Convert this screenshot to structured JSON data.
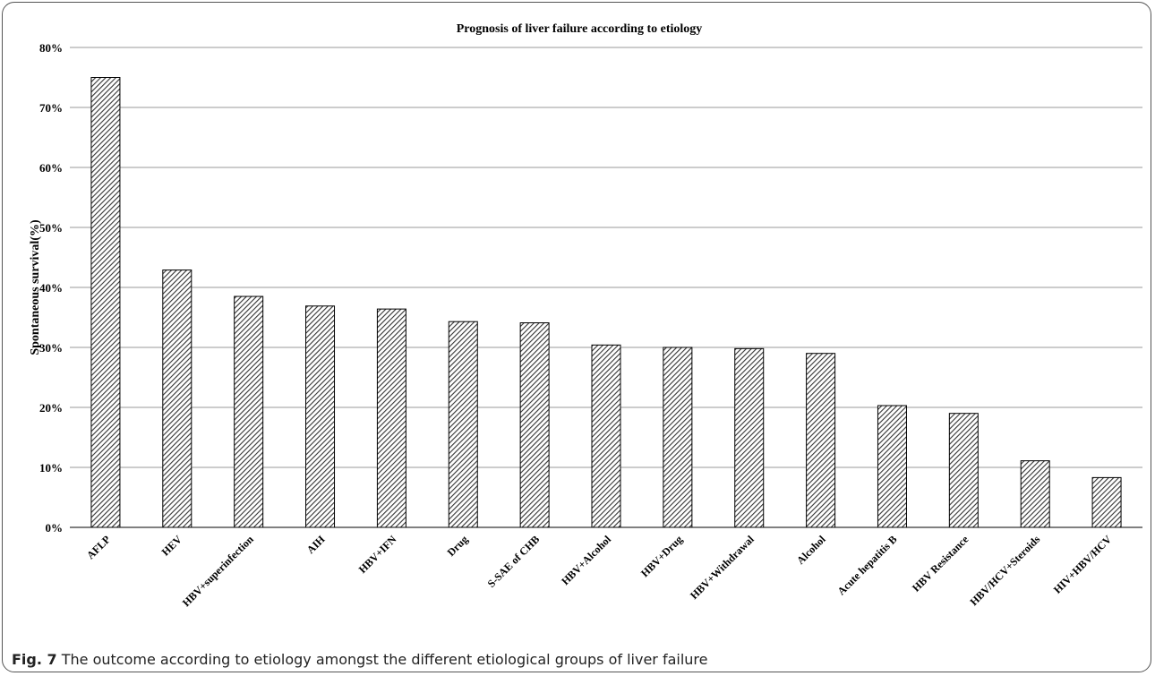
{
  "figure": {
    "caption_label": "Fig. 7",
    "caption_text": "The outcome according to etiology amongst the different etiological groups of liver failure"
  },
  "chart_data": {
    "type": "bar",
    "title": "Prognosis of liver failure according to etiology",
    "xlabel": "",
    "ylabel": "Spontaneous survival(%)",
    "ylim": [
      0,
      80
    ],
    "yticks": [
      0,
      10,
      20,
      30,
      40,
      50,
      60,
      70,
      80
    ],
    "ytick_suffix": "%",
    "grid": true,
    "legend": "none",
    "bar_fill": "diagonal-hatch",
    "colors": {
      "bar_stroke": "#000000",
      "hatch": "#333333",
      "grid": "#9a9a9a"
    },
    "categories": [
      "AFLP",
      "HEV",
      "HBV+superinfection",
      "AIH",
      "HBV+IFN",
      "Drug",
      "S-SAE of CHB",
      "HBV+Alcohol",
      "HBV+Drug",
      "HBV+Withdrawal",
      "Alcohol",
      "Acute hepatitis B",
      "HBV Resistance",
      "HBV/HCV+Steroids",
      "HIV+HBV/HCV"
    ],
    "values": [
      75.0,
      42.9,
      38.5,
      36.9,
      36.4,
      34.3,
      34.1,
      30.4,
      30.0,
      29.8,
      29.0,
      20.3,
      19.0,
      11.1,
      8.3
    ]
  }
}
